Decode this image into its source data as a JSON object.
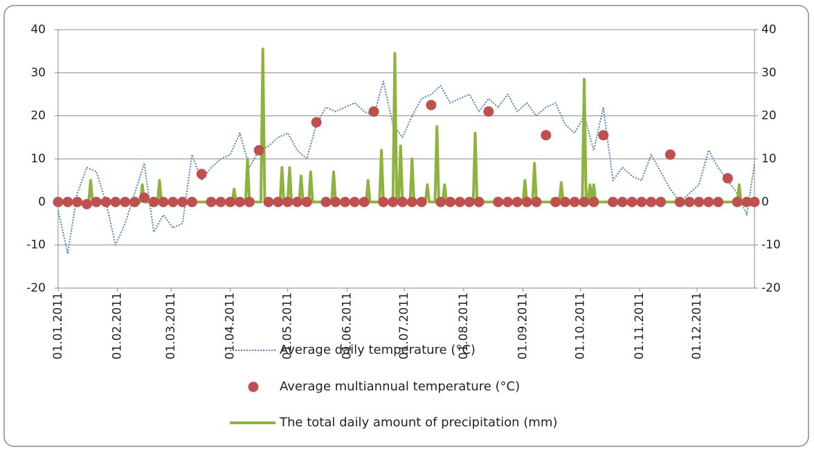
{
  "chart_data": {
    "type": "line",
    "xlim": [
      "01.01.2011",
      "31.12.2011"
    ],
    "xticks": [
      "01.01.2011",
      "01.02.2011",
      "01.03.2011",
      "01.04.2011",
      "01.05.2011",
      "01.06.2011",
      "01.07.2011",
      "01.08.2011",
      "01.09.2011",
      "01.10.2011",
      "01.11.2011",
      "01.12.2011"
    ],
    "ylim": [
      -20,
      40
    ],
    "yticks": [
      -20,
      -10,
      0,
      10,
      20,
      30,
      40
    ],
    "y2lim": [
      -20,
      40
    ],
    "y2ticks": [
      -20,
      -10,
      0,
      10,
      20,
      30,
      40
    ],
    "grid": true,
    "x": [
      "01.01.2011",
      "06.01.2011",
      "11.01.2011",
      "16.01.2011",
      "21.01.2011",
      "26.01.2011",
      "31.01.2011",
      "05.02.2011",
      "10.02.2011",
      "15.02.2011",
      "20.02.2011",
      "25.02.2011",
      "02.03.2011",
      "07.03.2011",
      "12.03.2011",
      "17.03.2011",
      "22.03.2011",
      "27.03.2011",
      "01.04.2011",
      "06.04.2011",
      "11.04.2011",
      "16.04.2011",
      "21.04.2011",
      "26.04.2011",
      "01.05.2011",
      "06.05.2011",
      "11.05.2011",
      "16.05.2011",
      "21.05.2011",
      "26.05.2011",
      "31.05.2011",
      "05.06.2011",
      "10.06.2011",
      "15.06.2011",
      "20.06.2011",
      "25.06.2011",
      "30.06.2011",
      "05.07.2011",
      "10.07.2011",
      "15.07.2011",
      "20.07.2011",
      "25.07.2011",
      "30.07.2011",
      "04.08.2011",
      "09.08.2011",
      "14.08.2011",
      "19.08.2011",
      "24.08.2011",
      "29.08.2011",
      "03.09.2011",
      "08.09.2011",
      "13.09.2011",
      "18.09.2011",
      "23.09.2011",
      "28.09.2011",
      "03.10.2011",
      "08.10.2011",
      "13.10.2011",
      "18.10.2011",
      "23.10.2011",
      "28.10.2011",
      "02.11.2011",
      "07.11.2011",
      "12.11.2011",
      "17.11.2011",
      "22.11.2011",
      "27.11.2011",
      "02.12.2011",
      "07.12.2011",
      "12.12.2011",
      "17.12.2011",
      "22.12.2011",
      "27.12.2011",
      "31.12.2011"
    ],
    "series": [
      {
        "name": "Average daily temperature (°C)",
        "color": "#4a7ebb",
        "style": "dotted",
        "values": [
          -2,
          -12,
          2,
          8,
          7,
          0,
          -10,
          -5,
          2,
          9,
          -7,
          -3,
          -6,
          -5,
          11,
          5,
          8,
          10,
          11,
          16,
          8,
          12,
          13,
          15,
          16,
          12,
          10,
          18,
          22,
          21,
          22,
          23,
          21,
          20,
          28,
          18,
          15,
          20,
          24,
          25,
          27,
          23,
          24,
          25,
          21,
          24,
          22,
          25,
          21,
          23,
          20,
          22,
          23,
          18,
          16,
          20,
          12,
          22,
          5,
          8,
          6,
          5,
          11,
          7,
          3,
          0,
          2,
          4,
          12,
          8,
          5,
          2,
          -3,
          9
        ]
      },
      {
        "name": "Average multiannual temperature  (°C)",
        "color": "#c0504d",
        "style": "markers",
        "values": [
          0,
          0,
          0,
          -0.5,
          0,
          0,
          0,
          0,
          0,
          1,
          0,
          0,
          0,
          0,
          0,
          6.5,
          0,
          0,
          0,
          0,
          0,
          12,
          0,
          0,
          0,
          0,
          0,
          18.5,
          0,
          0,
          0,
          0,
          0,
          21,
          0,
          0,
          0,
          0,
          0,
          22.5,
          0,
          0,
          0,
          0,
          0,
          21,
          0,
          0,
          0,
          0,
          0,
          15.5,
          0,
          0,
          0,
          0,
          0,
          15.5,
          0,
          0,
          0,
          0,
          0,
          0,
          11,
          0,
          0,
          0,
          0,
          0,
          5.5,
          0,
          0,
          0
        ]
      },
      {
        "name": "The total daily amount of precipitation (mm)",
        "color": "#8db33f",
        "style": "solid",
        "axis": "y2",
        "x": [
          "01.01.2011",
          "17.01.2011",
          "18.01.2011",
          "19.01.2011",
          "13.02.2011",
          "14.02.2011",
          "15.02.2011",
          "22.02.2011",
          "23.02.2011",
          "24.02.2011",
          "02.04.2011",
          "03.04.2011",
          "04.04.2011",
          "09.04.2011",
          "10.04.2011",
          "11.04.2011",
          "17.04.2011",
          "18.04.2011",
          "19.04.2011",
          "27.04.2011",
          "28.04.2011",
          "29.04.2011",
          "01.05.2011",
          "02.05.2011",
          "03.05.2011",
          "07.05.2011",
          "08.05.2011",
          "09.05.2011",
          "12.05.2011",
          "13.05.2011",
          "14.05.2011",
          "24.05.2011",
          "25.05.2011",
          "26.05.2011",
          "11.06.2011",
          "12.06.2011",
          "13.06.2011",
          "18.06.2011",
          "19.06.2011",
          "20.06.2011",
          "25.06.2011",
          "26.06.2011",
          "27.06.2011",
          "28.06.2011",
          "29.06.2011",
          "30.06.2011",
          "04.07.2011",
          "05.07.2011",
          "06.07.2011",
          "12.07.2011",
          "13.07.2011",
          "14.07.2011",
          "17.07.2011",
          "18.07.2011",
          "19.07.2011",
          "21.07.2011",
          "22.07.2011",
          "23.07.2011",
          "06.08.2011",
          "07.08.2011",
          "08.08.2011",
          "01.09.2011",
          "02.09.2011",
          "03.09.2011",
          "06.09.2011",
          "07.09.2011",
          "08.09.2011",
          "20.09.2011",
          "21.09.2011",
          "22.09.2011",
          "02.10.2011",
          "03.10.2011",
          "04.10.2011",
          "05.10.2011",
          "06.10.2011",
          "07.10.2011",
          "08.10.2011",
          "09.10.2011",
          "22.12.2011",
          "23.12.2011",
          "24.12.2011",
          "31.12.2011"
        ],
        "values": [
          0,
          0,
          5,
          0,
          0,
          4,
          0,
          0,
          5,
          0,
          0,
          3,
          0,
          0,
          10,
          0,
          0,
          35.5,
          0,
          0,
          8,
          0,
          0,
          8,
          0,
          0,
          6,
          0,
          0,
          7,
          0,
          0,
          7,
          0,
          0,
          5,
          0,
          0,
          12,
          0,
          0,
          34.5,
          0,
          0,
          13,
          0,
          0,
          10,
          0,
          0,
          4,
          0,
          0,
          17.5,
          0,
          0,
          4,
          0,
          0,
          16,
          0,
          0,
          5,
          0,
          0,
          9,
          0,
          0,
          4.5,
          0,
          0,
          28.5,
          0,
          0,
          4,
          0,
          4,
          0,
          0,
          4,
          0,
          0
        ]
      }
    ]
  }
}
